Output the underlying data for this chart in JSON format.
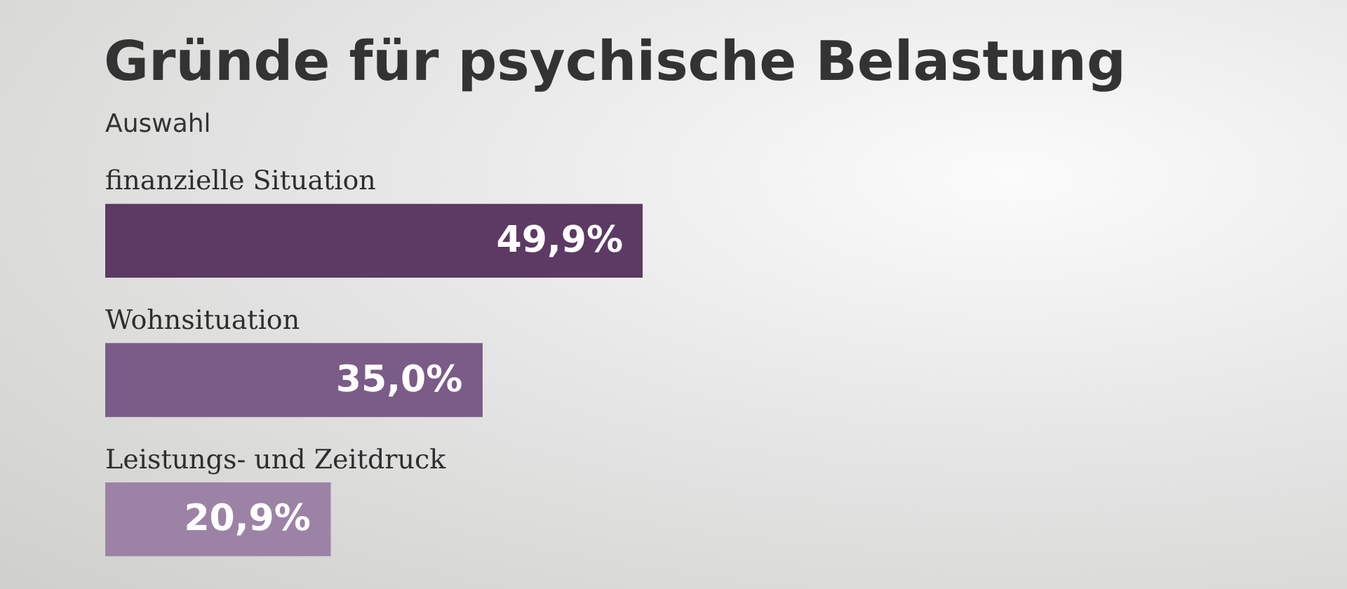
{
  "chart_data": {
    "type": "bar",
    "orientation": "horizontal",
    "title": "Gründe für psychische Belastung",
    "subtitle": "Auswahl",
    "categories": [
      "finanzielle Situation",
      "Wohnsituation",
      "Leistungs- und Zeitdruck"
    ],
    "values": [
      49.9,
      35.0,
      20.9
    ],
    "colors": [
      "#5c3a64",
      "#7b5b87",
      "#9c83a6"
    ],
    "value_labels": [
      "49,9%",
      "35,0%",
      "20,9%"
    ],
    "tick_labels": false
  }
}
